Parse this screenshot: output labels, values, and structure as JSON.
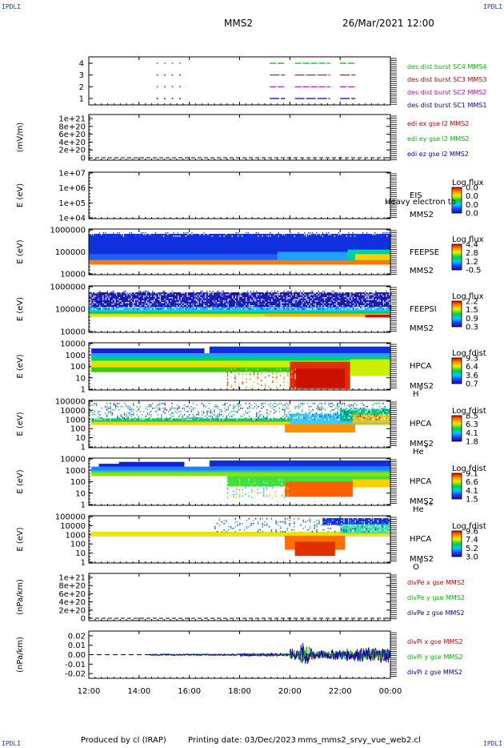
{
  "header": {
    "corner_tl": "IPDLI",
    "corner_tr": "IPDLI",
    "corner_bl": "IPDLI",
    "corner_br": "IPDLI",
    "spacecraft": "MMS2",
    "datetime": "26/Mar/2021 12:00"
  },
  "footer": {
    "producer": "Produced by cl (IRAP)",
    "printing_date": "Printing date: 03/Dec/2023",
    "script": "mms_mms2_srvy_vue_web2.cl"
  },
  "colors": {
    "blue": "#0000cc",
    "red": "#cc0000",
    "green": "#00bb00",
    "magenta": "#cc00cc"
  },
  "chart_data": {
    "time_axis": {
      "ticks": [
        "12:00",
        "14:00",
        "16:00",
        "18:00",
        "20:00",
        "22:00",
        "00:00"
      ],
      "range_hours": [
        12,
        24
      ]
    },
    "panels": [
      {
        "id": "burst",
        "type": "line",
        "yticks": [
          "4",
          "3",
          "2",
          "1"
        ],
        "series": [
          {
            "name": "des dist burst SC1 MMS1",
            "color": "#0000cc",
            "y": 1
          },
          {
            "name": "des dist burst SC2 MMS2",
            "color": "#cc00cc",
            "y": 2
          },
          {
            "name": "des dist burst SC3 MMS3",
            "color": "#cc0000",
            "y": 3
          },
          {
            "name": "des dist burst SC4 MMS4",
            "color": "#00bb00",
            "y": 4
          }
        ],
        "intervals_hours": [
          [
            19.2,
            19.8
          ],
          [
            20.2,
            21.6
          ],
          [
            22.0,
            22.6
          ]
        ],
        "dots_hours": [
          14.7,
          15.0,
          15.3,
          15.6
        ]
      },
      {
        "id": "edi",
        "type": "line",
        "ylabel": "(mV/m)",
        "yticks": [
          "1e+21",
          "8e+20",
          "6e+20",
          "4e+20",
          "2e+20",
          "0"
        ],
        "series": [
          {
            "name": "edi ex gse l2 MMS2",
            "color": "#cc0000"
          },
          {
            "name": "edi ey gse l2 MMS2",
            "color": "#00bb00"
          },
          {
            "name": "edi ez gse l2 MMS2",
            "color": "#0000cc"
          }
        ]
      },
      {
        "id": "eis",
        "type": "heatmap",
        "ylabel": "E (eV)",
        "yticks": [
          "1e+07",
          "1e+06",
          "1e+05",
          "1e+04"
        ],
        "labels": [
          "EIS",
          "MMS2"
        ],
        "overlap_text": "Heavy electron to",
        "colorbar_title": "Log flux",
        "colorbar_ticks": [
          "0.0",
          "0.0",
          "0.0",
          "0.0"
        ]
      },
      {
        "id": "feepse",
        "type": "heatmap",
        "ylabel": "E (eV)",
        "yticks": [
          "1000000",
          "100000",
          "10000"
        ],
        "labels": [
          "FEEPSE",
          "MMS2"
        ],
        "colorbar_title": "Log flux",
        "colorbar_ticks": [
          "4.4",
          "2.8",
          "1.2",
          "-0.5"
        ]
      },
      {
        "id": "feepsi",
        "type": "heatmap",
        "ylabel": "E (eV)",
        "yticks": [
          "1000000",
          "100000",
          "10000"
        ],
        "labels": [
          "FEEPSI",
          "MMS2"
        ],
        "colorbar_title": "Log flux",
        "colorbar_ticks": [
          "2.2",
          "1.5",
          "0.9",
          "0.3"
        ]
      },
      {
        "id": "hpca_h",
        "type": "heatmap",
        "ylabel": "E (eV)",
        "yticks": [
          "10000",
          "1000",
          "100",
          "10",
          "1"
        ],
        "labels": [
          "HPCA",
          "MMS2"
        ],
        "species": "H",
        "species_charge": "+",
        "colorbar_title": "Log fdist",
        "colorbar_ticks": [
          "9.3",
          "6.4",
          "3.6",
          "0.7"
        ]
      },
      {
        "id": "hpca_he",
        "type": "heatmap",
        "ylabel": "E (eV)",
        "yticks": [
          "100000",
          "10000",
          "1000",
          "100",
          "10",
          "1"
        ],
        "labels": [
          "HPCA",
          "MMS2"
        ],
        "species": "He",
        "species_charge": "+",
        "colorbar_title": "Log fdist",
        "colorbar_ticks": [
          "8.5",
          "6.3",
          "4.1",
          "1.8"
        ]
      },
      {
        "id": "hpca_hepp",
        "type": "heatmap",
        "ylabel": "E (eV)",
        "yticks": [
          "10000",
          "1000",
          "100",
          "10",
          "1"
        ],
        "labels": [
          "HPCA",
          "MMS2"
        ],
        "species": "He",
        "species_charge": "++",
        "colorbar_title": "Log fdist",
        "colorbar_ticks": [
          "9.1",
          "6.6",
          "4.1",
          "1.5"
        ]
      },
      {
        "id": "hpca_o",
        "type": "heatmap",
        "ylabel": "E (eV)",
        "yticks": [
          "100000",
          "10000",
          "1000",
          "100",
          "10",
          "1"
        ],
        "labels": [
          "HPCA",
          "MMS2"
        ],
        "species": "O",
        "species_charge": "+",
        "colorbar_title": "Log fdist",
        "colorbar_ticks": [
          "9.6",
          "7.4",
          "5.2",
          "3.0"
        ]
      },
      {
        "id": "divpe",
        "type": "line",
        "ylabel": "(nPa/km)",
        "yticks": [
          "1e+21",
          "8e+20",
          "6e+20",
          "4e+20",
          "2e+20",
          "0"
        ],
        "series": [
          {
            "name": "divPe x gse MMS2",
            "color": "#cc0000"
          },
          {
            "name": "divPe y gse MMS2",
            "color": "#00bb00"
          },
          {
            "name": "divPe z gse MMS2",
            "color": "#0000cc"
          }
        ]
      },
      {
        "id": "divpi",
        "type": "line",
        "ylabel": "(nPa/km)",
        "yticks": [
          "0.02",
          "0.01",
          "0.00",
          "-0.01",
          "-0.02"
        ],
        "ylim": [
          -0.025,
          0.025
        ],
        "series": [
          {
            "name": "divPi x gse MMS2",
            "color": "#cc0000"
          },
          {
            "name": "divPi y gse MMS2",
            "color": "#00bb00"
          },
          {
            "name": "divPi z gse MMS2",
            "color": "#0000cc"
          }
        ]
      }
    ]
  }
}
